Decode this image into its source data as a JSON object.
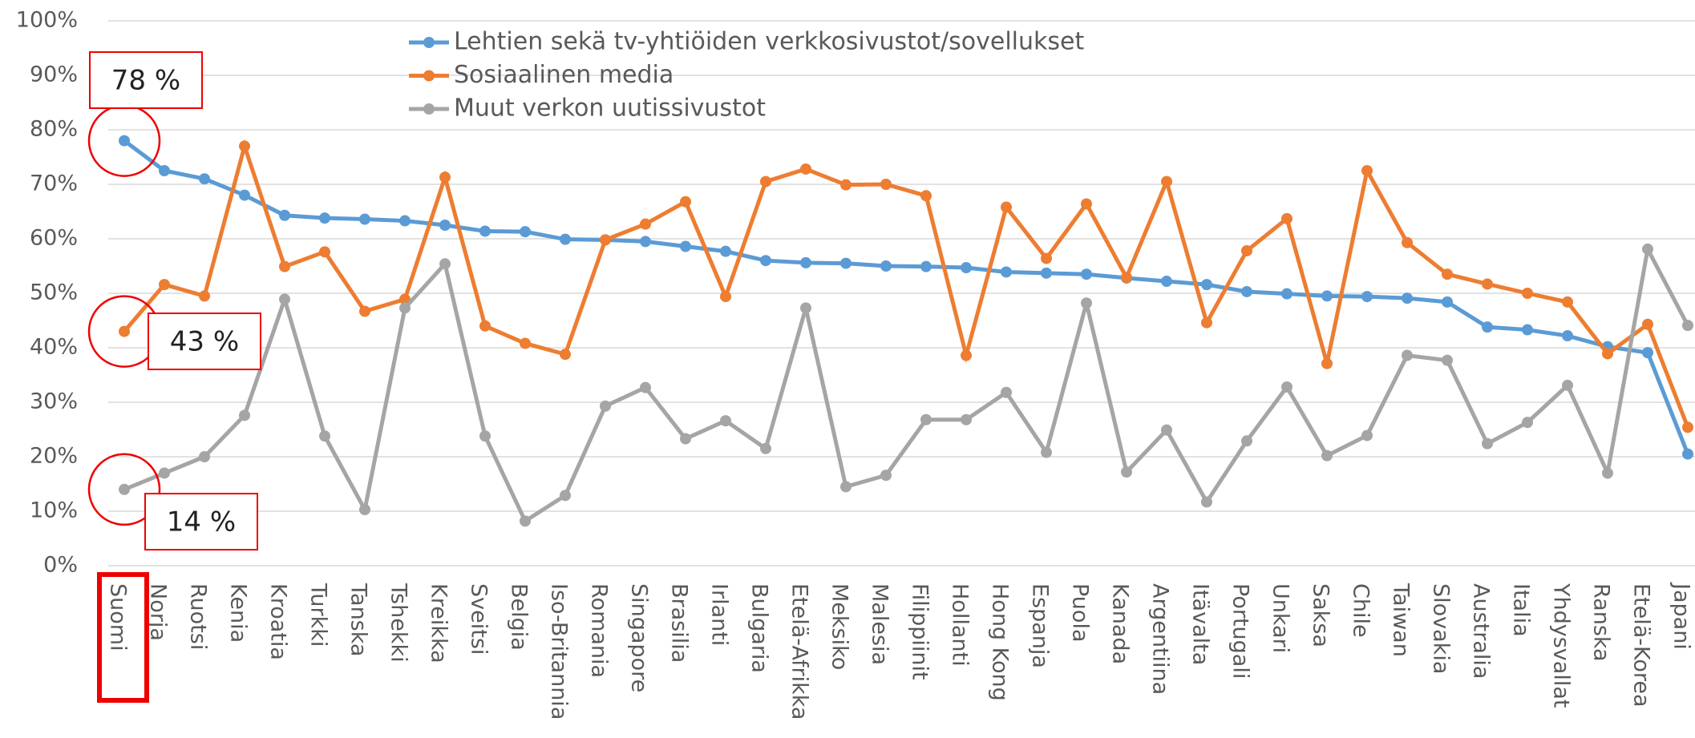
{
  "chart_data": {
    "type": "line",
    "categories": [
      "Suomi",
      "Norja",
      "Ruotsi",
      "Kenia",
      "Kroatia",
      "Turkki",
      "Tanska",
      "Tshekki",
      "Kreikka",
      "Sveitsi",
      "Belgia",
      "Iso-Britannia",
      "Romania",
      "Singapore",
      "Brasilia",
      "Irlanti",
      "Bulgaria",
      "Etelä-Afrikka",
      "Meksiko",
      "Malesia",
      "Filippiinit",
      "Hollanti",
      "Hong Kong",
      "Espanja",
      "Puola",
      "Kanada",
      "Argentiina",
      "Itävalta",
      "Portugali",
      "Unkari",
      "Saksa",
      "Chile",
      "Taiwan",
      "Slovakia",
      "Australia",
      "Italia",
      "Yhdysvallat",
      "Ranska",
      "Etelä-Korea",
      "Japani"
    ],
    "series": [
      {
        "name": "Lehtien sekä tv-yhtiöiden verkkosivustot/sovellukset",
        "color": "#5b9bd5",
        "values": [
          78,
          72.5,
          71,
          68,
          64.3,
          63.8,
          63.6,
          63.3,
          62.5,
          61.4,
          61.3,
          59.9,
          59.8,
          59.5,
          58.6,
          57.7,
          56,
          55.6,
          55.5,
          55,
          54.9,
          54.7,
          53.9,
          53.7,
          53.5,
          52.8,
          52.2,
          51.6,
          50.3,
          49.9,
          49.5,
          49.4,
          49.1,
          48.4,
          43.8,
          43.3,
          42.2,
          40.2,
          39.1,
          20.5
        ]
      },
      {
        "name": "Sosiaalinen media",
        "color": "#ed7d31",
        "values": [
          43,
          51.6,
          49.5,
          77,
          54.9,
          57.6,
          46.7,
          48.9,
          71.3,
          44,
          40.8,
          38.8,
          59.8,
          62.7,
          66.8,
          49.4,
          70.5,
          72.8,
          69.9,
          70,
          67.9,
          38.6,
          65.8,
          56.4,
          66.4,
          52.9,
          70.5,
          44.6,
          57.8,
          63.7,
          37.1,
          72.5,
          59.3,
          53.5,
          51.7,
          50,
          48.4,
          38.9,
          44.3,
          25.4
        ]
      },
      {
        "name": "Muut verkon uutissivustot",
        "color": "#a5a5a5",
        "values": [
          14,
          17,
          20,
          27.6,
          48.9,
          23.8,
          10.3,
          47.3,
          55.4,
          23.8,
          8.2,
          12.9,
          29.3,
          32.7,
          23.3,
          26.6,
          21.5,
          47.3,
          14.5,
          16.6,
          26.8,
          26.8,
          31.8,
          20.8,
          48.2,
          17.2,
          24.9,
          11.7,
          22.9,
          32.8,
          20.2,
          23.9,
          38.6,
          37.7,
          22.4,
          26.3,
          33.1,
          17,
          58.1,
          44.1
        ]
      }
    ],
    "annotations": [
      "78 %",
      "43 %",
      "14 %"
    ],
    "ylim": [
      0,
      100
    ],
    "yticks": [
      {
        "value": 0,
        "label": "0%"
      },
      {
        "value": 10,
        "label": "10%"
      },
      {
        "value": 20,
        "label": "20%"
      },
      {
        "value": 30,
        "label": "30%"
      },
      {
        "value": 40,
        "label": "40%"
      },
      {
        "value": 50,
        "label": "50%"
      },
      {
        "value": 60,
        "label": "60%"
      },
      {
        "value": 70,
        "label": "70%"
      },
      {
        "value": 80,
        "label": "80%"
      },
      {
        "value": 90,
        "label": "90%"
      },
      {
        "value": 100,
        "label": "100%"
      }
    ],
    "grid": true,
    "legend": "top"
  }
}
